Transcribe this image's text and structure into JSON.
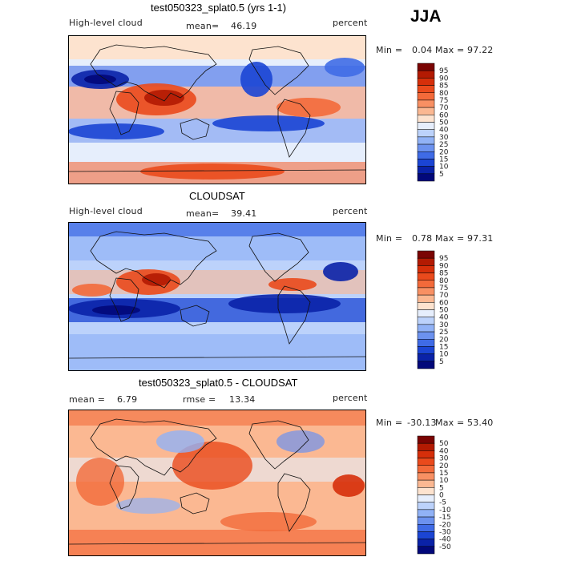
{
  "season": "JJA",
  "chart_data": [
    {
      "type": "heatmap",
      "title": "test050323_splat0.5 (yrs 1-1)",
      "variable_label": "High-level cloud",
      "stat_label": "mean=",
      "stat_value": "46.19",
      "units": "percent",
      "min_label": "Min =",
      "min_value": "0.04",
      "max_label": "Max =",
      "max_value": "97.22",
      "colorbar_levels": [
        "95",
        "90",
        "85",
        "80",
        "75",
        "70",
        "60",
        "50",
        "40",
        "30",
        "25",
        "20",
        "15",
        "10",
        "5"
      ],
      "colorbar_colors": [
        "#7a0403",
        "#b31a02",
        "#d62f0a",
        "#ea4a1c",
        "#f36a3a",
        "#f89063",
        "#fbb892",
        "#fde3cf",
        "#e6eefc",
        "#bcd2fb",
        "#91b2f6",
        "#6c92ef",
        "#3f6be6",
        "#1b45d4",
        "#0a22a8",
        "#02087a"
      ]
    },
    {
      "type": "heatmap",
      "title": "CLOUDSAT",
      "variable_label": "High-level cloud",
      "stat_label": "mean=",
      "stat_value": "39.41",
      "units": "percent",
      "min_label": "Min =",
      "min_value": "0.78",
      "max_label": "Max =",
      "max_value": "97.31",
      "colorbar_levels": [
        "95",
        "90",
        "85",
        "80",
        "75",
        "70",
        "60",
        "50",
        "40",
        "30",
        "25",
        "20",
        "15",
        "10",
        "5"
      ],
      "colorbar_colors": [
        "#7a0403",
        "#b31a02",
        "#d62f0a",
        "#ea4a1c",
        "#f36a3a",
        "#f89063",
        "#fbb892",
        "#fde3cf",
        "#e6eefc",
        "#bcd2fb",
        "#91b2f6",
        "#6c92ef",
        "#3f6be6",
        "#1b45d4",
        "#0a22a8",
        "#02087a"
      ]
    },
    {
      "type": "heatmap",
      "title": "test050323_splat0.5 - CLOUDSAT",
      "variable_label": "mean =",
      "stat_label": "rmse =",
      "mean_value": "6.79",
      "stat_value": "13.34",
      "units": "percent",
      "min_label": "Min =",
      "min_value": "-30.13",
      "max_label": "Max =",
      "max_value": "53.40",
      "colorbar_levels": [
        "50",
        "40",
        "30",
        "20",
        "15",
        "10",
        "5",
        "0",
        "-5",
        "-10",
        "-15",
        "-20",
        "-30",
        "-40",
        "-50"
      ],
      "colorbar_colors": [
        "#7a0403",
        "#b31a02",
        "#d62f0a",
        "#ea4a1c",
        "#f36a3a",
        "#f89063",
        "#fbb892",
        "#fde3cf",
        "#e6eefc",
        "#bcd2fb",
        "#91b2f6",
        "#6c92ef",
        "#3f6be6",
        "#1b45d4",
        "#0a22a8",
        "#02087a"
      ]
    }
  ]
}
